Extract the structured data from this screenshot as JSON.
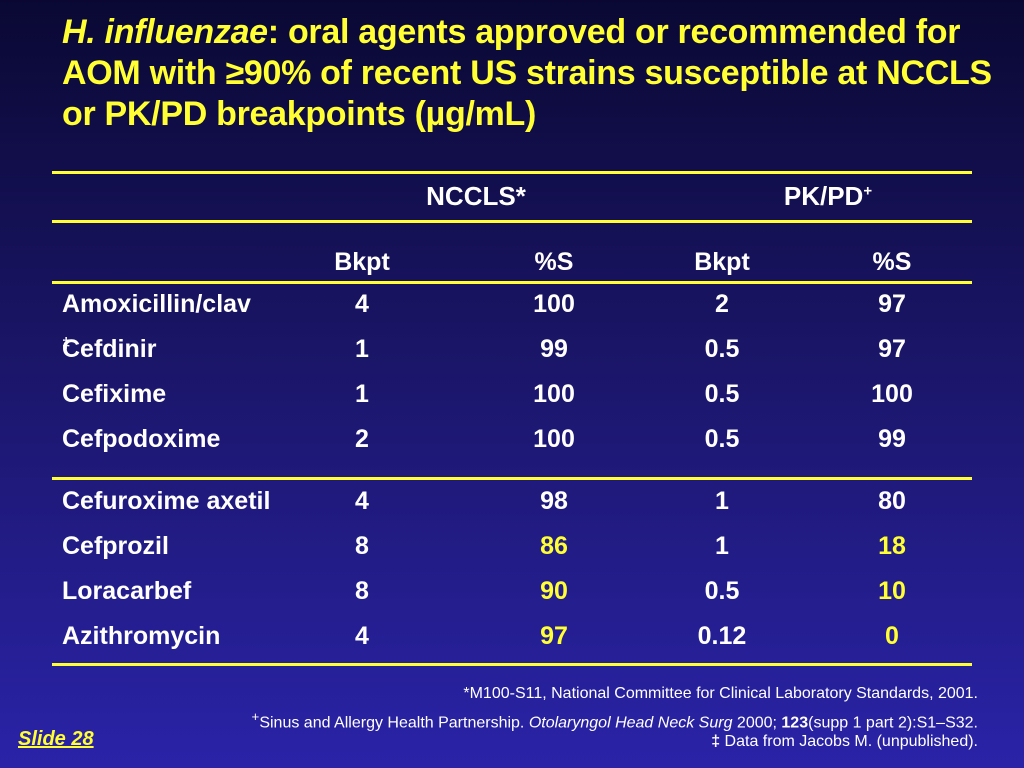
{
  "title": {
    "italic": "H. influenzae",
    "rest": ": oral agents approved or recommended for AOM with ≥90% of recent US strains susceptible at NCCLS or PK/PD breakpoints (µg/mL)"
  },
  "table": {
    "group_headers": {
      "nccls": "NCCLS*",
      "pkpd": "PK/PD",
      "pkpd_mark": "+"
    },
    "columns": [
      "Bkpt",
      "%S",
      "Bkpt",
      "%S"
    ],
    "rows": [
      {
        "drug": "Amoxicillin/clav",
        "mark": "",
        "nccls_bkpt": "4",
        "nccls_s": "100",
        "pkpd_bkpt": "2",
        "pkpd_s": "97"
      },
      {
        "drug": "Cefdinir",
        "mark": "‡",
        "nccls_bkpt": "1",
        "nccls_s": "99",
        "pkpd_bkpt": "0.5",
        "pkpd_s": "97"
      },
      {
        "drug": "Cefixime",
        "mark": "",
        "nccls_bkpt": "1",
        "nccls_s": "100",
        "pkpd_bkpt": "0.5",
        "pkpd_s": "100"
      },
      {
        "drug": "Cefpodoxime",
        "mark": "",
        "nccls_bkpt": "2",
        "nccls_s": "100",
        "pkpd_bkpt": "0.5",
        "pkpd_s": "99"
      },
      {
        "drug": "Cefuroxime axetil",
        "mark": "",
        "nccls_bkpt": "4",
        "nccls_s": "98",
        "pkpd_bkpt": "1",
        "pkpd_s": "80"
      },
      {
        "drug": "Cefprozil",
        "mark": "",
        "nccls_bkpt": "8",
        "nccls_s": "86",
        "pkpd_bkpt": "1",
        "pkpd_s": "18"
      },
      {
        "drug": "Loracarbef",
        "mark": "",
        "nccls_bkpt": "8",
        "nccls_s": "90",
        "pkpd_bkpt": "0.5",
        "pkpd_s": "10"
      },
      {
        "drug": "Azithromycin",
        "mark": "",
        "nccls_bkpt": "4",
        "nccls_s": "97",
        "pkpd_bkpt": "0.12",
        "pkpd_s": "0"
      }
    ]
  },
  "footnotes": {
    "f1_mark": "*",
    "f1_text": "M100-S11, National Committee for Clinical Laboratory Standards, 2001.",
    "f2_mark": "+",
    "f2_text_a": "Sinus and Allergy Health Partnership. ",
    "f2_journal": "Otolaryngol Head Neck Surg",
    "f2_text_b": " 2000; ",
    "f2_volume": "123",
    "f2_text_c": "(supp 1 part 2):S1–S32.",
    "f3_mark": "‡",
    "f3_text": " Data from Jacobs M. (unpublished)."
  },
  "slide_label": "Slide  28",
  "colors": {
    "accent": "#ffff33",
    "text": "#ffffff"
  }
}
